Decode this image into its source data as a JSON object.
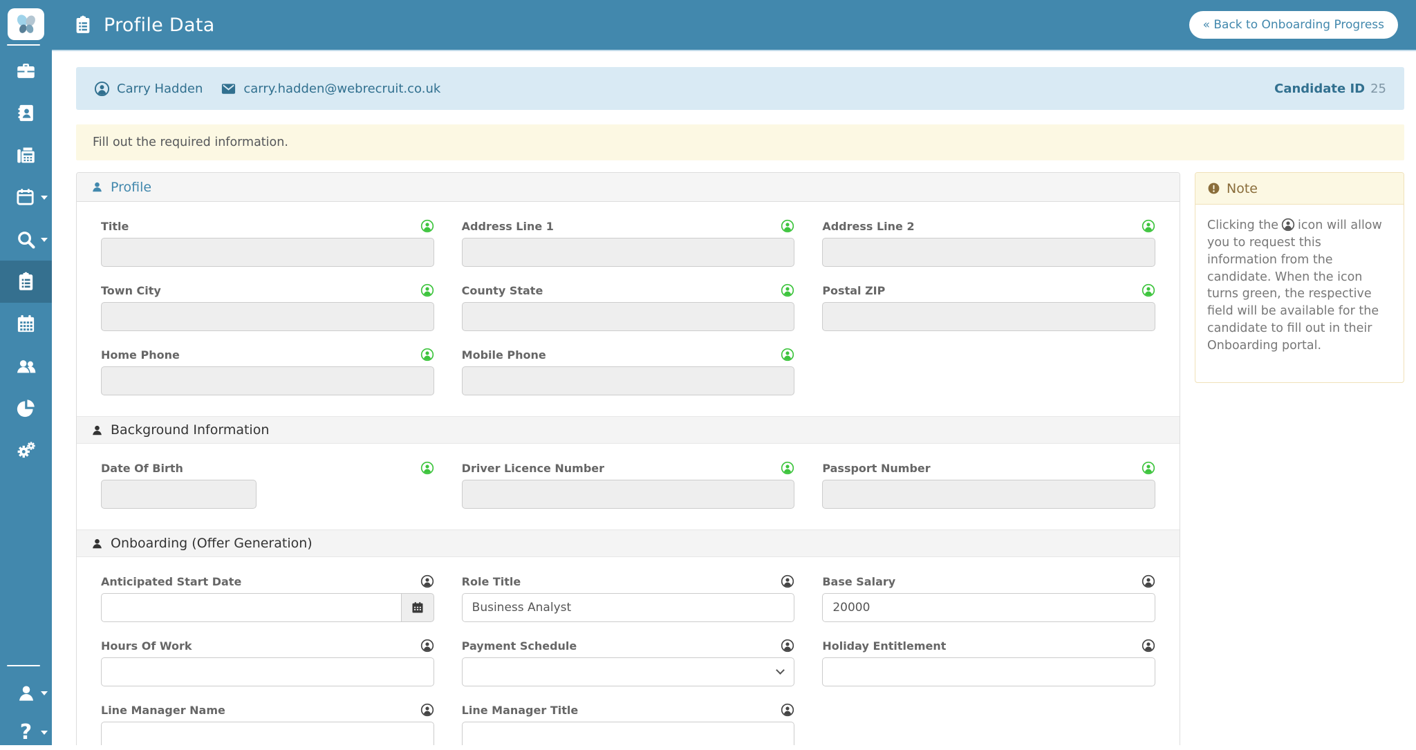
{
  "app": {
    "title": "Profile Data",
    "back_button_label": "« Back to Onboarding Progress"
  },
  "sidebar": {
    "items": [
      {
        "name": "briefcase",
        "active": false,
        "dropdown": false
      },
      {
        "name": "contacts-book",
        "active": false,
        "dropdown": false
      },
      {
        "name": "fax",
        "active": false,
        "dropdown": false
      },
      {
        "name": "calendar-menu",
        "active": false,
        "dropdown": true
      },
      {
        "name": "search-menu",
        "active": false,
        "dropdown": true
      },
      {
        "name": "onboarding-clipboard",
        "active": true,
        "dropdown": false
      },
      {
        "name": "calendar-grid",
        "active": false,
        "dropdown": false
      },
      {
        "name": "users",
        "active": false,
        "dropdown": false
      },
      {
        "name": "pie-chart",
        "active": false,
        "dropdown": false
      },
      {
        "name": "settings-gears",
        "active": false,
        "dropdown": false
      }
    ],
    "bottom_items": [
      {
        "name": "user-account",
        "dropdown": true
      },
      {
        "name": "help",
        "dropdown": true
      }
    ]
  },
  "candidate_bar": {
    "name": "Carry Hadden",
    "email": "carry.hadden@webrecruit.co.uk",
    "id_label": "Candidate ID",
    "id_value": "25"
  },
  "alert": {
    "message": "Fill out the required information."
  },
  "profile_panel": {
    "title": "Profile",
    "sections": [
      {
        "title": "",
        "fields": [
          {
            "label": "Title",
            "value": "",
            "state": "requested",
            "disabled": true
          },
          {
            "label": "Address Line 1",
            "value": "",
            "state": "requested",
            "disabled": true
          },
          {
            "label": "Address Line 2",
            "value": "",
            "state": "requested",
            "disabled": true
          },
          {
            "label": "Town City",
            "value": "",
            "state": "requested",
            "disabled": true
          },
          {
            "label": "County State",
            "value": "",
            "state": "requested",
            "disabled": true
          },
          {
            "label": "Postal ZIP",
            "value": "",
            "state": "requested",
            "disabled": true
          },
          {
            "label": "Home Phone",
            "value": "",
            "state": "requested",
            "disabled": true
          },
          {
            "label": "Mobile Phone",
            "value": "",
            "state": "requested",
            "disabled": true
          }
        ]
      },
      {
        "title": "Background Information",
        "fields": [
          {
            "label": "Date Of Birth",
            "value": "",
            "state": "requested",
            "disabled": true,
            "short": true
          },
          {
            "label": "Driver Licence Number",
            "value": "",
            "state": "requested",
            "disabled": true
          },
          {
            "label": "Passport Number",
            "value": "",
            "state": "requested",
            "disabled": true
          }
        ]
      },
      {
        "title": "Onboarding (Offer Generation)",
        "fields": [
          {
            "label": "Anticipated Start Date",
            "value": "",
            "state": "normal",
            "disabled": false,
            "type": "date"
          },
          {
            "label": "Role Title",
            "value": "Business Analyst",
            "state": "normal",
            "disabled": false
          },
          {
            "label": "Base Salary",
            "value": "20000",
            "state": "normal",
            "disabled": false
          },
          {
            "label": "Hours Of Work",
            "value": "",
            "state": "normal",
            "disabled": false
          },
          {
            "label": "Payment Schedule",
            "value": "",
            "state": "normal",
            "disabled": false,
            "type": "select"
          },
          {
            "label": "Holiday Entitlement",
            "value": "",
            "state": "normal",
            "disabled": false
          },
          {
            "label": "Line Manager Name",
            "value": "",
            "state": "normal",
            "disabled": false
          },
          {
            "label": "Line Manager Title",
            "value": "",
            "state": "normal",
            "disabled": false
          }
        ]
      }
    ]
  },
  "note_panel": {
    "title": "Note",
    "text_before_icon": "Clicking the",
    "text_after_icon": "icon will allow you to request this information from the candidate. When the icon turns green, the respective field will be available for the candidate to fill out in their Onboarding portal."
  },
  "colors": {
    "brand": "#4288ad",
    "sidebar_active": "#35708f",
    "requested_icon": "#3dc43d",
    "normal_icon": "#444444",
    "candidate_bar_bg": "#d9eaf4",
    "alert_bg": "#fcf8e3",
    "note_title": "#8a6d3b"
  }
}
